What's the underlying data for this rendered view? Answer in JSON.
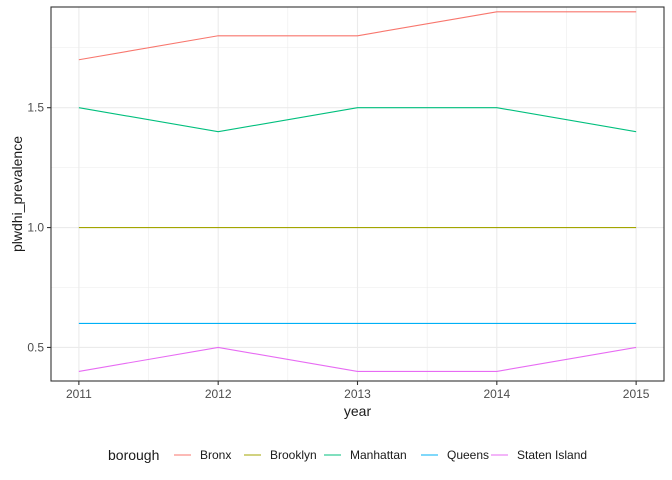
{
  "chart_data": {
    "type": "line",
    "xlabel": "year",
    "ylabel": "plwdhi_prevalence",
    "x": [
      2011,
      2012,
      2013,
      2014,
      2015
    ],
    "x_ticks": [
      "2011",
      "2012",
      "2013",
      "2014",
      "2015"
    ],
    "y_ticks": [
      "0.5",
      "1.0",
      "1.5"
    ],
    "ylim": [
      0.36,
      1.92
    ],
    "xlim": [
      2010.8,
      2015.2
    ],
    "grid": true,
    "legend": {
      "title": "borough",
      "position": "bottom"
    },
    "series": [
      {
        "name": "Bronx",
        "color": "#F8766D",
        "values": [
          1.7,
          1.8,
          1.8,
          1.9,
          1.9
        ]
      },
      {
        "name": "Brooklyn",
        "color": "#A3A500",
        "values": [
          1.0,
          1.0,
          1.0,
          1.0,
          1.0
        ]
      },
      {
        "name": "Manhattan",
        "color": "#00BF7D",
        "values": [
          1.5,
          1.4,
          1.5,
          1.5,
          1.4
        ]
      },
      {
        "name": "Queens",
        "color": "#00B0F6",
        "values": [
          0.6,
          0.6,
          0.6,
          0.6,
          0.6
        ]
      },
      {
        "name": "Staten Island",
        "color": "#E76BF3",
        "values": [
          0.4,
          0.5,
          0.4,
          0.4,
          0.5
        ]
      }
    ]
  }
}
